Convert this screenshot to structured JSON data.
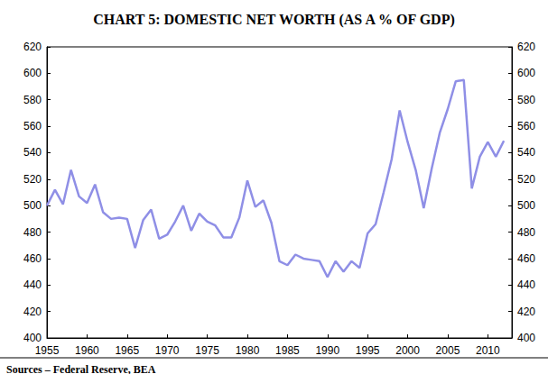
{
  "chart_data": {
    "type": "line",
    "title": "CHART 5: DOMESTIC NET WORTH (AS A % OF GDP)",
    "source": "Sources – Federal Reserve, BEA",
    "x": [
      1955,
      1956,
      1957,
      1958,
      1959,
      1960,
      1961,
      1962,
      1963,
      1964,
      1965,
      1966,
      1967,
      1968,
      1969,
      1970,
      1971,
      1972,
      1973,
      1974,
      1975,
      1976,
      1977,
      1978,
      1979,
      1980,
      1981,
      1982,
      1983,
      1984,
      1985,
      1986,
      1987,
      1988,
      1989,
      1990,
      1991,
      1992,
      1993,
      1994,
      1995,
      1996,
      1997,
      1998,
      1999,
      2000,
      2001,
      2002,
      2003,
      2004,
      2005,
      2006,
      2007,
      2008,
      2009,
      2010,
      2011,
      2012
    ],
    "values": [
      500,
      512,
      501,
      527,
      507,
      502,
      516,
      495,
      490,
      491,
      490,
      468,
      489,
      497,
      475,
      478,
      488,
      500,
      481,
      494,
      488,
      485,
      476,
      476,
      491,
      519,
      499,
      504,
      487,
      458,
      455,
      463,
      460,
      459,
      458,
      446,
      458,
      450,
      458,
      453,
      479,
      486,
      510,
      535,
      572,
      548,
      527,
      498,
      528,
      555,
      573,
      594,
      595,
      513,
      537,
      548,
      537,
      549
    ],
    "color": "#8f8fe6",
    "xlim": [
      1955,
      2013
    ],
    "xticks": [
      1955,
      1960,
      1965,
      1970,
      1975,
      1980,
      1985,
      1990,
      1995,
      2000,
      2005,
      2010
    ],
    "ylim": [
      400,
      620
    ],
    "yticks": [
      400,
      420,
      440,
      460,
      480,
      500,
      520,
      540,
      560,
      580,
      600,
      620
    ],
    "y2lim": [
      400,
      620
    ],
    "y2ticks": [
      400,
      420,
      440,
      460,
      480,
      500,
      520,
      540,
      560,
      580,
      600,
      620
    ],
    "grid": false
  }
}
